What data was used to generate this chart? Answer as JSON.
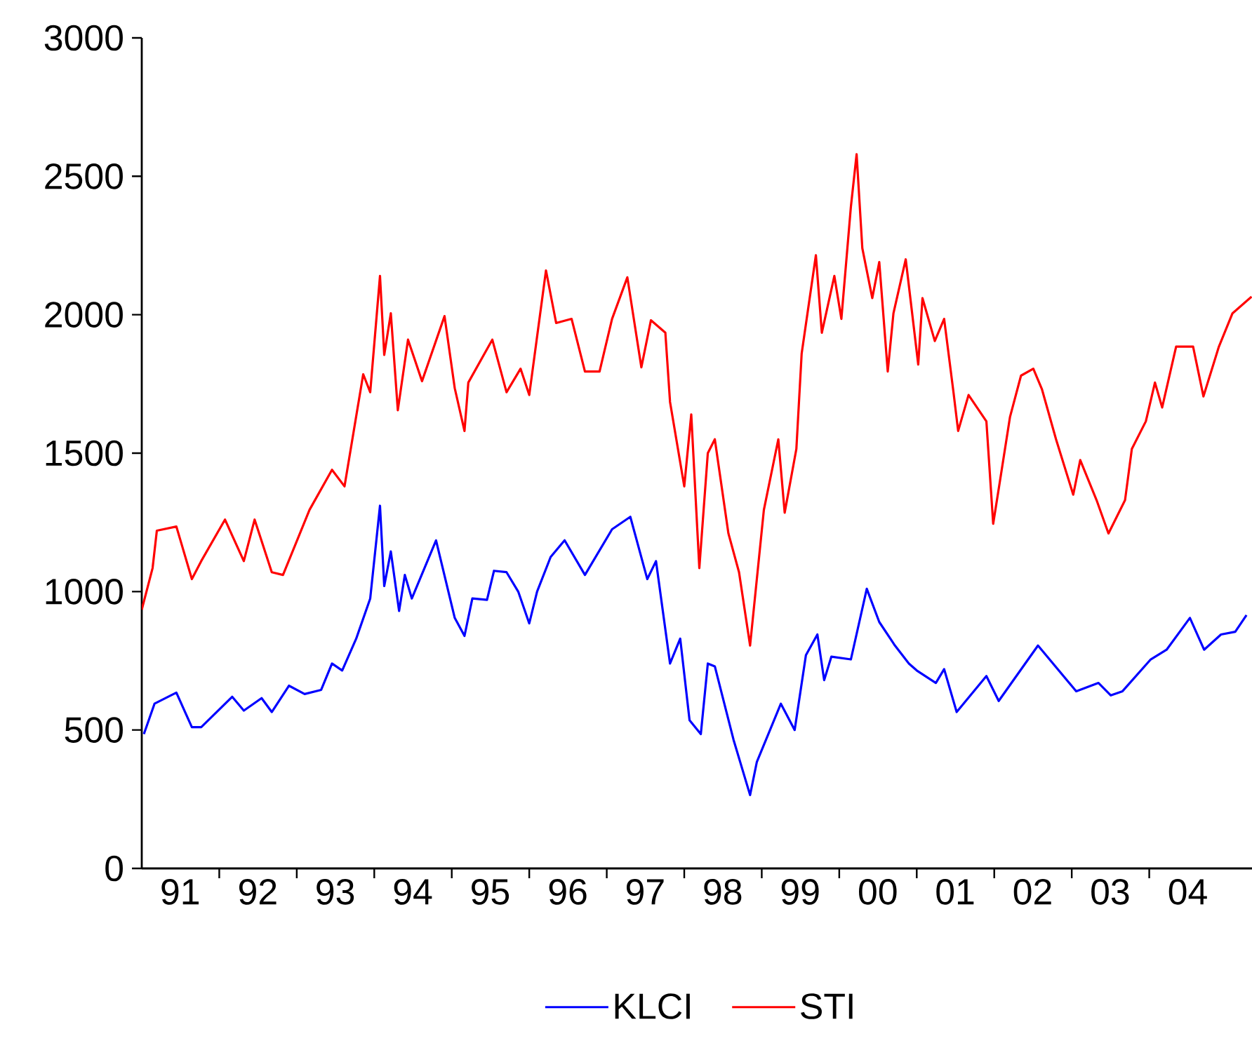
{
  "chart_data": {
    "type": "line",
    "xlim": [
      "1991-01-01",
      "2005-04-30"
    ],
    "ylim": [
      0,
      3000
    ],
    "yticks": [
      0,
      500,
      1000,
      1500,
      2000,
      2500,
      3000
    ],
    "xticks": [
      {
        "value": "1991-07-01",
        "label": "91"
      },
      {
        "value": "1992-01-01",
        "label": null
      },
      {
        "value": "1992-07-01",
        "label": "92"
      },
      {
        "value": "1993-01-01",
        "label": null
      },
      {
        "value": "1993-07-01",
        "label": "93"
      },
      {
        "value": "1994-01-01",
        "label": null
      },
      {
        "value": "1994-07-01",
        "label": "94"
      },
      {
        "value": "1995-01-01",
        "label": null
      },
      {
        "value": "1995-07-01",
        "label": "95"
      },
      {
        "value": "1996-01-01",
        "label": null
      },
      {
        "value": "1996-07-01",
        "label": "96"
      },
      {
        "value": "1997-01-01",
        "label": null
      },
      {
        "value": "1997-07-01",
        "label": "97"
      },
      {
        "value": "1998-01-01",
        "label": null
      },
      {
        "value": "1998-07-01",
        "label": "98"
      },
      {
        "value": "1999-01-01",
        "label": null
      },
      {
        "value": "1999-07-01",
        "label": "99"
      },
      {
        "value": "2000-01-01",
        "label": null
      },
      {
        "value": "2000-07-01",
        "label": "00"
      },
      {
        "value": "2001-01-01",
        "label": null
      },
      {
        "value": "2001-07-01",
        "label": "01"
      },
      {
        "value": "2002-01-01",
        "label": null
      },
      {
        "value": "2002-07-01",
        "label": "02"
      },
      {
        "value": "2003-01-01",
        "label": null
      },
      {
        "value": "2003-07-01",
        "label": "03"
      },
      {
        "value": "2004-01-01",
        "label": null
      },
      {
        "value": "2004-07-01",
        "label": "04"
      }
    ],
    "legend": "bottom",
    "grid": false,
    "marker": "none",
    "line_style": "solid",
    "series": [
      {
        "name": "KLCI",
        "color": "#0000ff",
        "x": [
          "1991-01-11",
          "1991-03-02",
          "1991-06-13",
          "1991-08-25",
          "1991-10-08",
          "1992-03-02",
          "1992-04-26",
          "1992-07-19",
          "1992-09-05",
          "1992-11-25",
          "1993-02-07",
          "1993-04-26",
          "1993-06-16",
          "1993-08-03",
          "1993-10-08",
          "1993-12-13",
          "1994-01-28",
          "1994-02-17",
          "1994-03-20",
          "1994-04-28",
          "1994-05-25",
          "1994-06-27",
          "1994-10-19",
          "1995-01-15",
          "1995-03-02",
          "1995-04-08",
          "1995-06-16",
          "1995-07-19",
          "1995-09-16",
          "1995-11-10",
          "1996-01-01",
          "1996-02-07",
          "1996-04-11",
          "1996-06-16",
          "1996-09-20",
          "1997-01-26",
          "1997-04-22",
          "1997-07-11",
          "1997-08-21",
          "1997-10-26",
          "1997-12-13",
          "1998-01-26",
          "1998-03-20",
          "1998-04-22",
          "1998-05-25",
          "1998-08-21",
          "1998-11-07",
          "1998-12-09",
          "1999-04-01",
          "1999-06-05",
          "1999-07-28",
          "1999-09-20",
          "1999-10-22",
          "1999-11-25",
          "2000-02-25",
          "2000-05-10",
          "2000-07-08",
          "2000-09-20",
          "2000-11-25",
          "2001-01-01",
          "2001-04-01",
          "2001-05-10",
          "2001-07-08",
          "2001-11-25",
          "2002-01-22",
          "2002-07-26",
          "2003-01-22",
          "2003-05-07",
          "2003-07-04",
          "2003-08-28",
          "2004-01-08",
          "2004-03-23",
          "2004-07-11",
          "2004-09-16",
          "2004-12-05",
          "2005-02-10",
          "2005-04-04"
        ],
        "values": [
          485,
          595,
          635,
          510,
          510,
          620,
          570,
          615,
          565,
          660,
          630,
          645,
          740,
          715,
          830,
          975,
          1310,
          1020,
          1145,
          930,
          1060,
          975,
          1185,
          905,
          840,
          975,
          970,
          1075,
          1070,
          1000,
          885,
          1000,
          1125,
          1185,
          1060,
          1225,
          1270,
          1045,
          1110,
          740,
          830,
          535,
          485,
          740,
          730,
          465,
          265,
          385,
          595,
          500,
          770,
          845,
          680,
          765,
          755,
          1010,
          890,
          805,
          740,
          715,
          670,
          720,
          565,
          695,
          605,
          805,
          640,
          670,
          625,
          640,
          755,
          790,
          905,
          790,
          845,
          855,
          915
        ]
      },
      {
        "name": "STI",
        "color": "#ff0000",
        "x": [
          "1991-01-01",
          "1991-02-21",
          "1991-03-13",
          "1991-06-13",
          "1991-08-25",
          "1991-10-08",
          "1992-01-28",
          "1992-04-26",
          "1992-06-16",
          "1992-09-05",
          "1992-10-28",
          "1993-03-02",
          "1993-06-16",
          "1993-08-14",
          "1993-11-10",
          "1993-12-13",
          "1994-01-28",
          "1994-02-17",
          "1994-03-20",
          "1994-04-22",
          "1994-06-09",
          "1994-08-14",
          "1994-11-28",
          "1995-01-15",
          "1995-03-02",
          "1995-03-20",
          "1995-07-11",
          "1995-09-16",
          "1995-11-21",
          "1996-01-01",
          "1996-03-20",
          "1996-05-07",
          "1996-07-19",
          "1996-09-20",
          "1996-11-28",
          "1997-01-26",
          "1997-04-08",
          "1997-06-13",
          "1997-07-28",
          "1997-10-04",
          "1997-10-26",
          "1998-01-01",
          "1998-02-03",
          "1998-03-13",
          "1998-04-22",
          "1998-05-25",
          "1998-07-28",
          "1998-09-16",
          "1998-11-07",
          "1999-01-11",
          "1999-03-20",
          "1999-04-19",
          "1999-06-13",
          "1999-07-08",
          "1999-09-13",
          "1999-10-11",
          "1999-12-09",
          "2000-01-11",
          "2000-02-25",
          "2000-03-23",
          "2000-04-19",
          "2000-06-05",
          "2000-07-08",
          "2000-08-17",
          "2000-09-13",
          "2000-11-10",
          "2001-01-08",
          "2001-01-28",
          "2001-03-27",
          "2001-05-10",
          "2001-06-23",
          "2001-07-15",
          "2001-09-02",
          "2001-11-25",
          "2001-12-27",
          "2002-01-28",
          "2002-03-16",
          "2002-05-07",
          "2002-07-04",
          "2002-08-14",
          "2002-10-19",
          "2003-01-08",
          "2003-02-10",
          "2003-04-28",
          "2003-06-23",
          "2003-09-09",
          "2003-10-11",
          "2003-12-16",
          "2004-01-28",
          "2004-03-02",
          "2004-05-07",
          "2004-07-26",
          "2004-09-13",
          "2004-11-25",
          "2005-01-28",
          "2005-04-28"
        ],
        "values": [
          935,
          1085,
          1220,
          1235,
          1045,
          1110,
          1260,
          1110,
          1260,
          1070,
          1060,
          1295,
          1440,
          1380,
          1785,
          1720,
          2140,
          1855,
          2005,
          1655,
          1910,
          1760,
          1995,
          1735,
          1580,
          1755,
          1910,
          1720,
          1805,
          1710,
          2160,
          1970,
          1985,
          1795,
          1795,
          1985,
          2135,
          1810,
          1980,
          1935,
          1685,
          1380,
          1640,
          1085,
          1500,
          1550,
          1210,
          1070,
          805,
          1295,
          1550,
          1285,
          1515,
          1860,
          2215,
          1935,
          2140,
          1985,
          2390,
          2580,
          2240,
          2060,
          2190,
          1795,
          2005,
          2200,
          1820,
          2060,
          1905,
          1985,
          1720,
          1580,
          1710,
          1615,
          1245,
          1400,
          1630,
          1780,
          1805,
          1730,
          1550,
          1350,
          1475,
          1330,
          1210,
          1330,
          1515,
          1615,
          1755,
          1665,
          1885,
          1885,
          1705,
          1885,
          2005,
          2065
        ]
      }
    ]
  }
}
